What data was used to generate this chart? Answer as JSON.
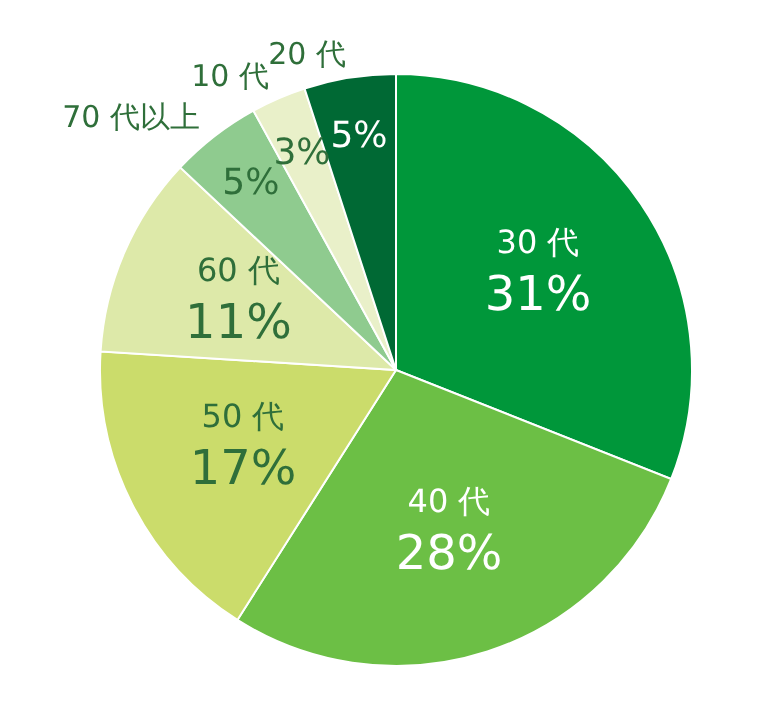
{
  "chart_data": {
    "type": "pie",
    "categories": [
      "30 代",
      "40 代",
      "50 代",
      "60 代",
      "70 代以上",
      "10 代",
      "20 代"
    ],
    "values": [
      31,
      28,
      17,
      11,
      5,
      3,
      5
    ],
    "value_labels": [
      "31%",
      "28%",
      "17%",
      "11%",
      "5%",
      "3%",
      "5%"
    ],
    "colors": [
      "#00973a",
      "#6cbf45",
      "#cbdc6b",
      "#dde9a9",
      "#8fcb8f",
      "#e9f0c9",
      "#006934"
    ],
    "legend": false
  }
}
